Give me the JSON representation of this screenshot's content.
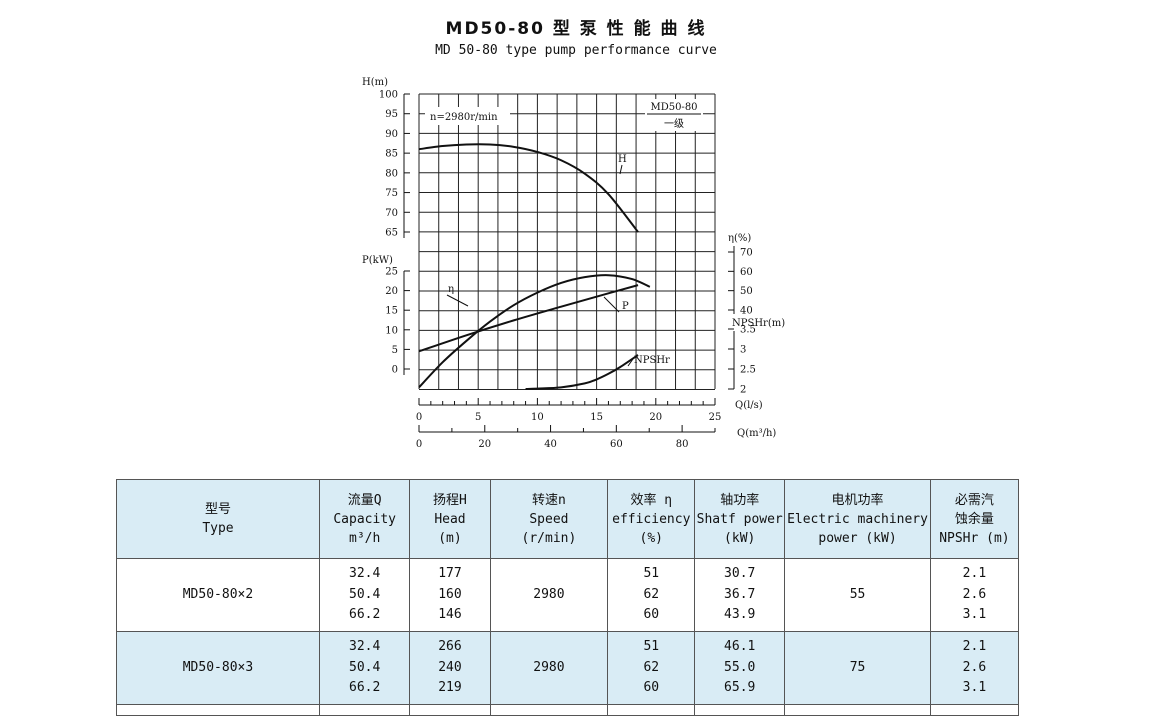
{
  "title": "MD50-80 型 泵 性 能 曲 线",
  "subtitle": "MD 50-80 type pump performance curve",
  "chart_data": {
    "type": "line",
    "speed_note": "n=2980r/min",
    "legend_box": {
      "line1": "MD50-80",
      "line2": "一级"
    },
    "x": {
      "label": "Q(l/s)",
      "range": [
        0,
        25
      ],
      "ticks": [
        "0",
        "5",
        "10",
        "15",
        "20",
        "25"
      ]
    },
    "x2": {
      "label": "Q(m³/h)",
      "range": [
        0,
        90
      ],
      "ticks": [
        "0",
        "20",
        "40",
        "60",
        "80"
      ]
    },
    "axes": {
      "H": {
        "label": "H(m)",
        "range": [
          65,
          100
        ],
        "ticks": [
          "100",
          "95",
          "90",
          "85",
          "80",
          "75",
          "70",
          "65"
        ]
      },
      "P": {
        "label": "P(kW)",
        "range": [
          0,
          25
        ],
        "ticks": [
          "25",
          "20",
          "15",
          "10",
          "5",
          "0"
        ]
      },
      "eta": {
        "label": "η(%)",
        "range": [
          40,
          70
        ],
        "ticks": [
          "70",
          "60",
          "50",
          "40"
        ]
      },
      "NPSHr": {
        "label": "NPSHr(m)",
        "range": [
          2,
          3.5
        ],
        "ticks": [
          "3.5",
          "3",
          "2.5",
          "2"
        ]
      }
    },
    "series": [
      {
        "name": "H",
        "axis": "H",
        "x": [
          0,
          2,
          4,
          6,
          8,
          10,
          12,
          14,
          16,
          18.5
        ],
        "y": [
          86,
          86.8,
          87.2,
          87.2,
          86.6,
          85.3,
          83.2,
          79.8,
          74.6,
          65
        ]
      },
      {
        "name": "P",
        "axis": "P",
        "x": [
          0,
          4,
          8,
          12,
          16,
          18.5
        ],
        "y": [
          4.5,
          8.6,
          12.4,
          15.9,
          19.3,
          21.4
        ]
      },
      {
        "name": "η",
        "axis": "eta",
        "x": [
          0,
          2,
          4,
          6,
          8,
          10,
          12,
          14,
          16,
          18,
          19.5
        ],
        "y": [
          0,
          13,
          24,
          34,
          42.5,
          49,
          54,
          57,
          58,
          56,
          52
        ]
      },
      {
        "name": "NPSHr",
        "axis": "NPSHr",
        "x": [
          9,
          10,
          12,
          14,
          15,
          16,
          17,
          18.5
        ],
        "y": [
          2,
          2.01,
          2.04,
          2.14,
          2.24,
          2.38,
          2.55,
          2.85
        ]
      }
    ],
    "grid": true
  },
  "table": {
    "headers": [
      [
        "型号",
        "Type"
      ],
      [
        "流量Q",
        "Capacity",
        "m³/h"
      ],
      [
        "扬程H",
        "Head",
        "(m)"
      ],
      [
        "转速n",
        "Speed",
        "(r/min)"
      ],
      [
        "效率 η",
        "efficiency",
        "(%)"
      ],
      [
        "轴功率",
        "Shatf power",
        "(kW)"
      ],
      [
        "电机功率",
        "Electric machinery",
        "power  (kW)"
      ],
      [
        "必需汽",
        "蚀余量",
        "NPSHr (m)"
      ]
    ],
    "rows": [
      {
        "type": "MD50-80×2",
        "capacity": [
          "32.4",
          "50.4",
          "66.2"
        ],
        "head": [
          "177",
          "160",
          "146"
        ],
        "speed": "2980",
        "efficiency": [
          "51",
          "62",
          "60"
        ],
        "shaft_power": [
          "30.7",
          "36.7",
          "43.9"
        ],
        "motor_power": "55",
        "npshr": [
          "2.1",
          "2.6",
          "3.1"
        ]
      },
      {
        "type": "MD50-80×3",
        "capacity": [
          "32.4",
          "50.4",
          "66.2"
        ],
        "head": [
          "266",
          "240",
          "219"
        ],
        "speed": "2980",
        "efficiency": [
          "51",
          "62",
          "60"
        ],
        "shaft_power": [
          "46.1",
          "55.0",
          "65.9"
        ],
        "motor_power": "75",
        "npshr": [
          "2.1",
          "2.6",
          "3.1"
        ]
      }
    ]
  }
}
